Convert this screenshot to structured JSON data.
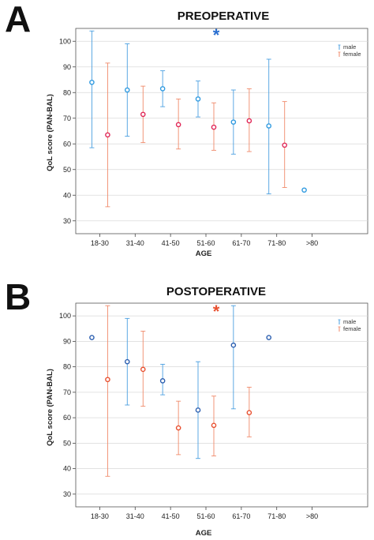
{
  "colors": {
    "male": "#4a9fe0",
    "female": "#f08a6a",
    "male_dot": "#2f7fd6",
    "female_dot": "#e03060",
    "grid": "#d9d9d9",
    "frame": "#555555"
  },
  "chart_data": [
    {
      "panel": "A",
      "type": "scatter",
      "title": "PREOPERATIVE",
      "annotation": "*",
      "annotation_color": "#2a6fd0",
      "xlabel": "AGE",
      "ylabel": "QoL score (PAN-BAL)",
      "ylim": [
        25,
        105
      ],
      "yticks": [
        30,
        40,
        50,
        60,
        70,
        80,
        90,
        100
      ],
      "categories": [
        "18-30",
        "31-40",
        "41-50",
        "51-60",
        "61-70",
        "71-80",
        ">80"
      ],
      "legend": "top-right",
      "grid": true,
      "series": [
        {
          "name": "male",
          "color": "#4a9fe0",
          "dot": "#2f9ae0",
          "values": [
            84,
            81,
            81.5,
            77.5,
            68.5,
            67,
            42
          ],
          "low": [
            58.5,
            63,
            74.5,
            70.5,
            56,
            40.5,
            null
          ],
          "high": [
            104,
            99,
            88.5,
            84.5,
            81,
            93,
            null
          ]
        },
        {
          "name": "female",
          "color": "#f08a6a",
          "dot": "#e02858",
          "values": [
            63.5,
            71.5,
            67.5,
            66.5,
            69,
            59.5,
            null
          ],
          "low": [
            35.5,
            60.5,
            58,
            57.5,
            57,
            43,
            null
          ],
          "high": [
            91.5,
            82.5,
            77.5,
            76,
            81.5,
            76.5,
            null
          ]
        }
      ]
    },
    {
      "panel": "B",
      "type": "scatter",
      "title": "POSTOPERATIVE",
      "annotation": "*",
      "annotation_color": "#e85030",
      "xlabel": "AGE",
      "ylabel": "QoL score (PAN-BAL)",
      "ylim": [
        25,
        105
      ],
      "yticks": [
        30,
        40,
        50,
        60,
        70,
        80,
        90,
        100
      ],
      "categories": [
        "18-30",
        "31-40",
        "41-50",
        "51-60",
        "61-70",
        "71-80",
        ">80"
      ],
      "legend": "top-right",
      "grid": true,
      "series": [
        {
          "name": "male",
          "color": "#4a9fe0",
          "dot": "#2c5fb0",
          "values": [
            91.5,
            82,
            74.5,
            63,
            88.5,
            91.5,
            null
          ],
          "low": [
            null,
            65,
            69,
            44,
            63.5,
            null,
            null
          ],
          "high": [
            null,
            99,
            81,
            82,
            104,
            null,
            null
          ]
        },
        {
          "name": "female",
          "color": "#f08a6a",
          "dot": "#e85030",
          "values": [
            75,
            79,
            56,
            57,
            62,
            null,
            null
          ],
          "low": [
            37,
            64.5,
            45.5,
            45,
            52.5,
            null,
            null
          ],
          "high": [
            104,
            94,
            66.5,
            68.5,
            72,
            null,
            null
          ]
        }
      ]
    }
  ]
}
